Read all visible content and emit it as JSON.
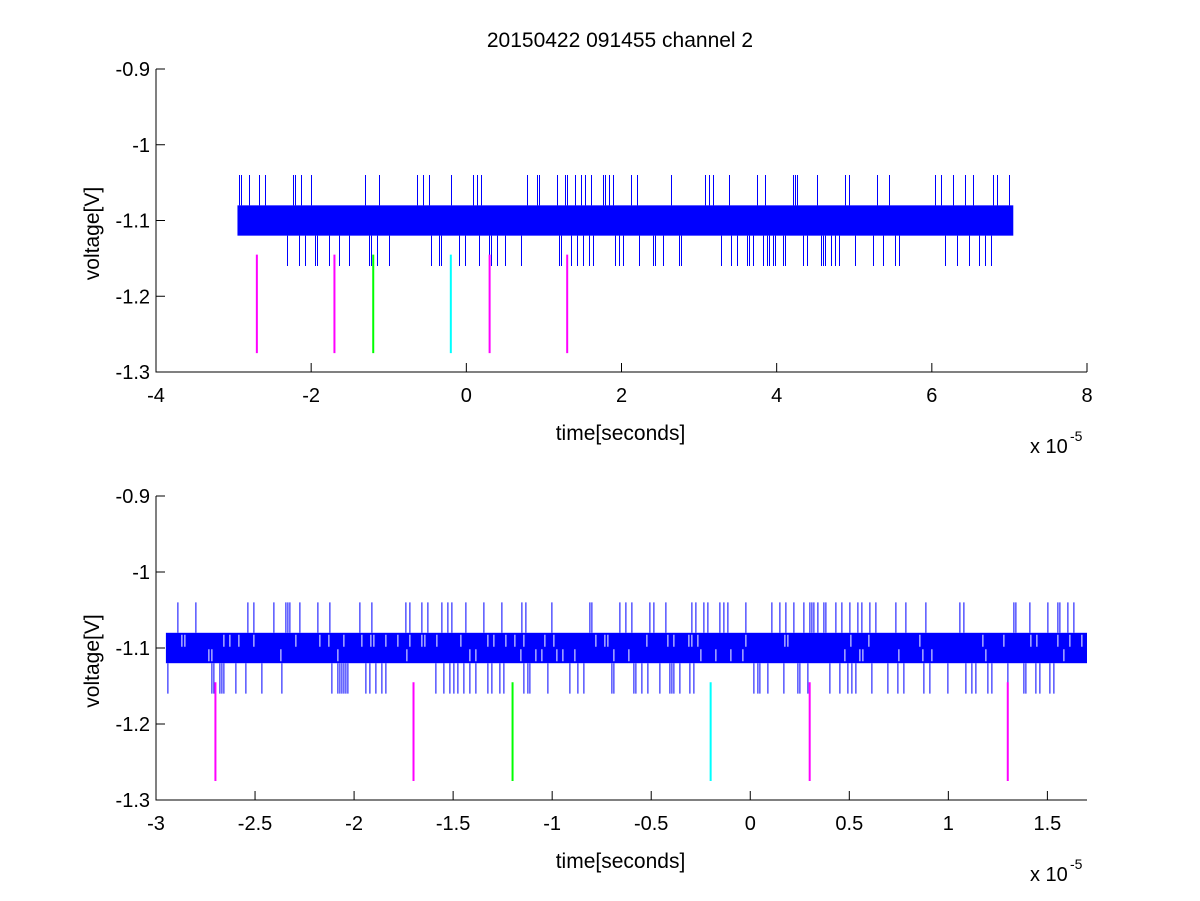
{
  "figure": {
    "title": "20150422 091455 channel 2"
  },
  "chart_data": [
    {
      "type": "line",
      "xlabel": "time[seconds]",
      "ylabel": "voltage[V]",
      "x_exponent_label": "x 10",
      "x_exponent_power": "-5",
      "xlim": [
        -4e-05,
        8e-05
      ],
      "ylim": [
        -1.3,
        -0.9
      ],
      "y_reversed": true,
      "xticks": [
        -4,
        -2,
        0,
        2,
        4,
        6,
        8
      ],
      "xtick_labels": [
        "-4",
        "-2",
        "0",
        "2",
        "4",
        "6",
        "8"
      ],
      "yticks": [
        -0.9,
        -1.0,
        -1.1,
        -1.2,
        -1.3
      ],
      "ytick_labels": [
        "-0.9",
        "-1",
        "-1.1",
        "-1.2",
        "-1.3"
      ],
      "grid": false,
      "series": [
        {
          "kind": "digital-signal",
          "color": "#0000ff",
          "x_range": [
            -2.95e-05,
            7.05e-05
          ],
          "band": [
            -1.12,
            -1.08
          ],
          "spike_extent": [
            -1.16,
            -1.04
          ]
        }
      ],
      "markers": [
        {
          "x": -2.7e-05,
          "y": [
            -1.145,
            -1.275
          ],
          "color": "#ff00ff"
        },
        {
          "x": -1.7e-05,
          "y": [
            -1.145,
            -1.275
          ],
          "color": "#ff00ff"
        },
        {
          "x": -1.2e-05,
          "y": [
            -1.145,
            -1.275
          ],
          "color": "#00ff00"
        },
        {
          "x": -2e-06,
          "y": [
            -1.145,
            -1.275
          ],
          "color": "#00ffff"
        },
        {
          "x": 3e-06,
          "y": [
            -1.145,
            -1.275
          ],
          "color": "#ff00ff"
        },
        {
          "x": 1.3e-05,
          "y": [
            -1.145,
            -1.275
          ],
          "color": "#ff00ff"
        }
      ]
    },
    {
      "type": "line",
      "xlabel": "time[seconds]",
      "ylabel": "voltage[V]",
      "x_exponent_label": "x 10",
      "x_exponent_power": "-5",
      "xlim": [
        -3e-05,
        1.7e-05
      ],
      "ylim": [
        -1.3,
        -0.9
      ],
      "y_reversed": true,
      "xticks": [
        -3,
        -2.5,
        -2,
        -1.5,
        -1,
        -0.5,
        0,
        0.5,
        1,
        1.5
      ],
      "xtick_labels": [
        "-3",
        "-2.5",
        "-2",
        "-1.5",
        "-1",
        "-0.5",
        "0",
        "0.5",
        "1",
        "1.5"
      ],
      "yticks": [
        -0.9,
        -1.0,
        -1.1,
        -1.2,
        -1.3
      ],
      "ytick_labels": [
        "-0.9",
        "-1",
        "-1.1",
        "-1.2",
        "-1.3"
      ],
      "grid": false,
      "series": [
        {
          "kind": "digital-signal",
          "color": "#0000ff",
          "x_range": [
            -2.95e-05,
            1.7e-05
          ],
          "band": [
            -1.12,
            -1.08
          ],
          "spike_extent": [
            -1.16,
            -1.04
          ]
        }
      ],
      "markers": [
        {
          "x": -2.7e-05,
          "y": [
            -1.145,
            -1.275
          ],
          "color": "#ff00ff"
        },
        {
          "x": -1.7e-05,
          "y": [
            -1.145,
            -1.275
          ],
          "color": "#ff00ff"
        },
        {
          "x": -1.2e-05,
          "y": [
            -1.145,
            -1.275
          ],
          "color": "#00ff00"
        },
        {
          "x": -2e-06,
          "y": [
            -1.145,
            -1.275
          ],
          "color": "#00ffff"
        },
        {
          "x": 3e-06,
          "y": [
            -1.145,
            -1.275
          ],
          "color": "#ff00ff"
        },
        {
          "x": 1.3e-05,
          "y": [
            -1.145,
            -1.275
          ],
          "color": "#ff00ff"
        }
      ]
    }
  ]
}
